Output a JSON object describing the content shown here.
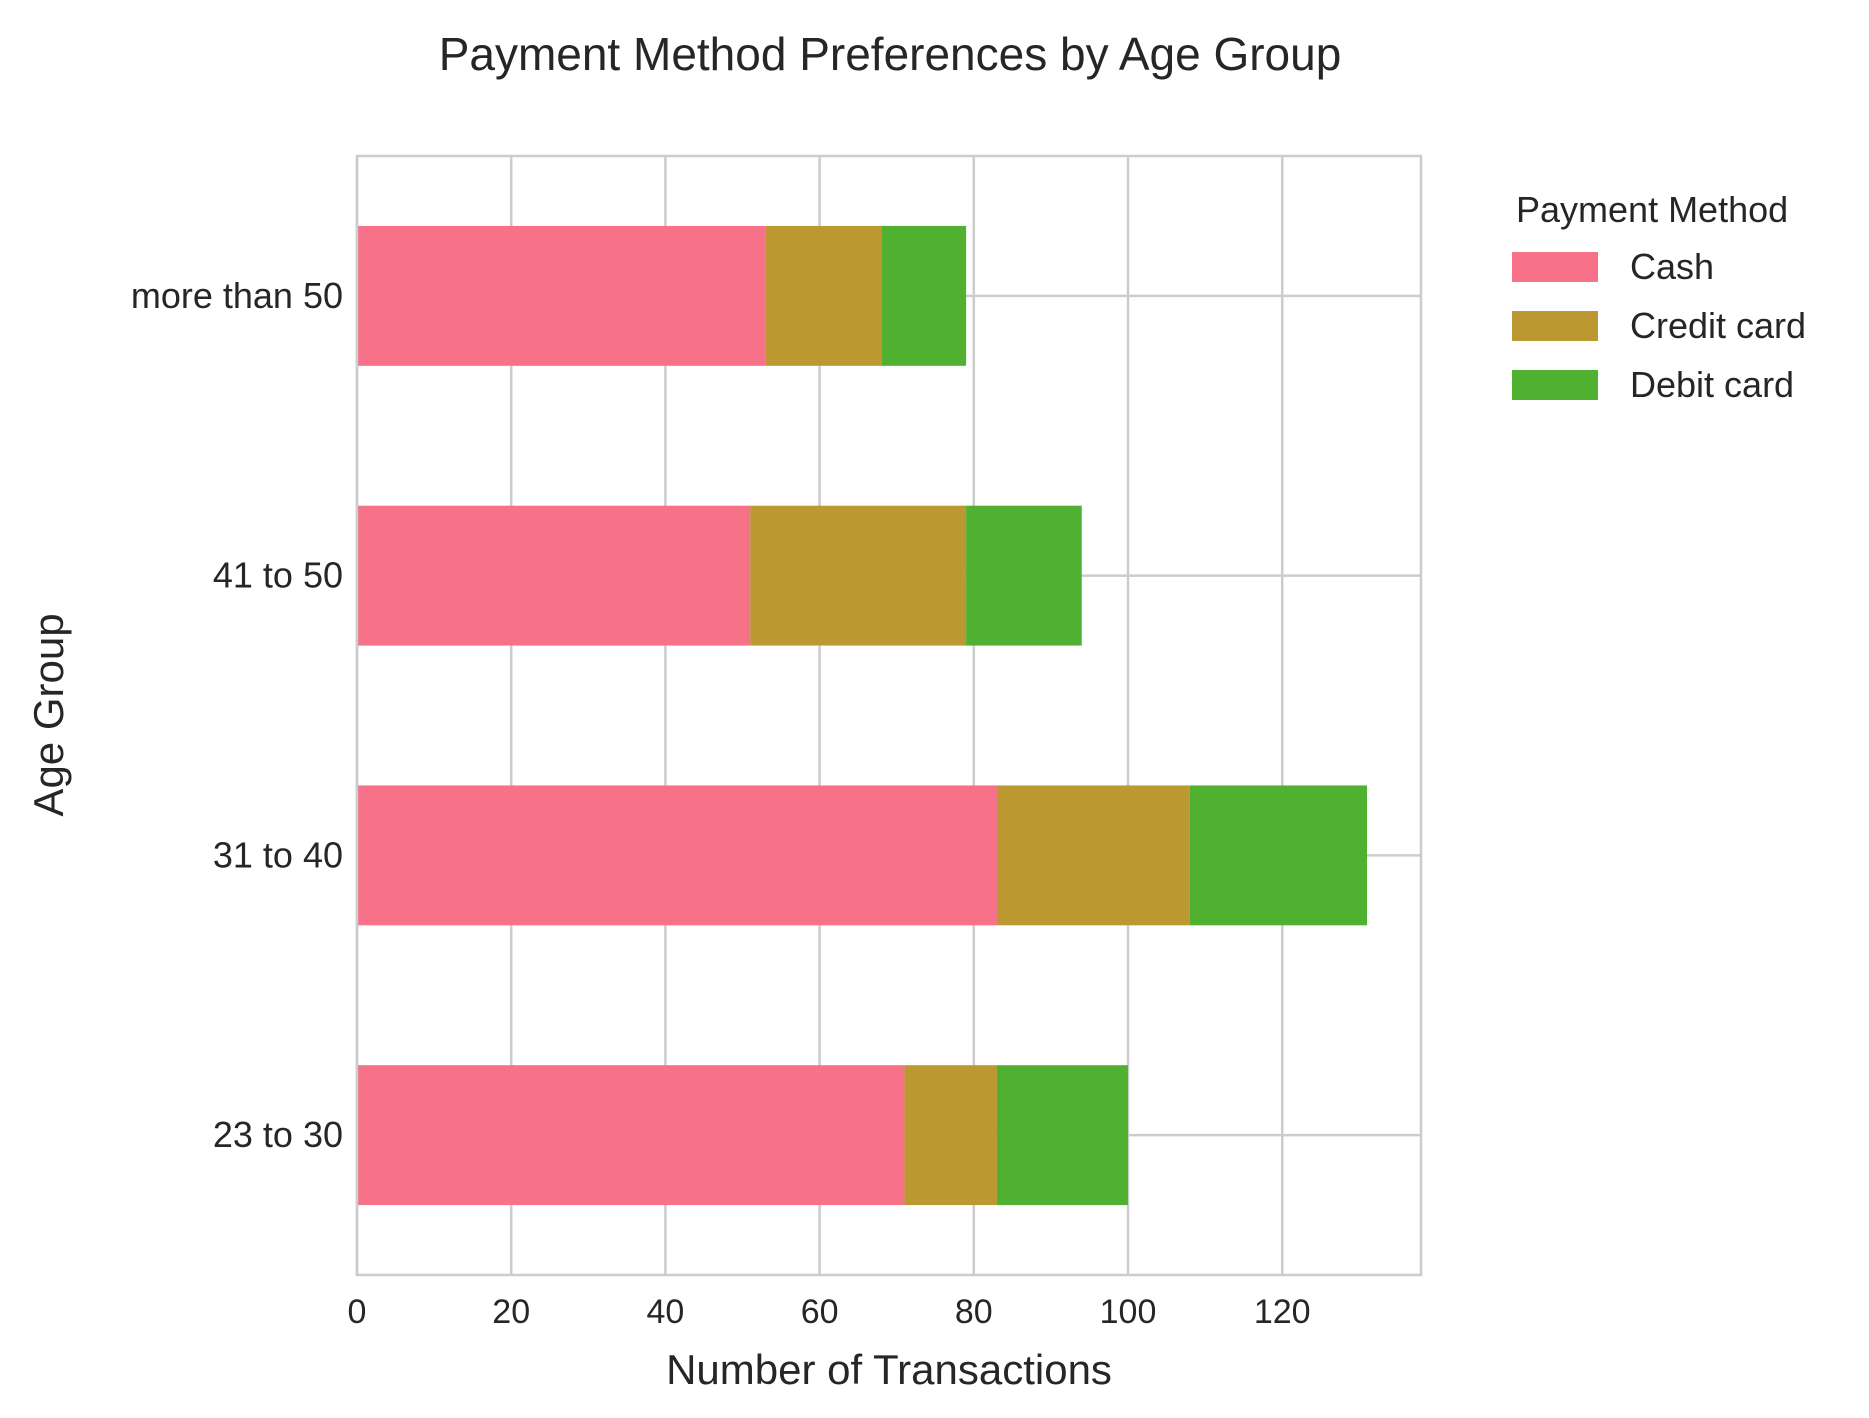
{
  "chart_data": {
    "type": "bar",
    "orientation": "horizontal",
    "stacked": true,
    "title": "Payment Method Preferences by Age Group",
    "xlabel": "Number of Transactions",
    "ylabel": "Age Group",
    "categories": [
      "23 to 30",
      "31 to 40",
      "41 to 50",
      "more than 50"
    ],
    "series": [
      {
        "name": "Cash",
        "color": "#f77189",
        "values": [
          71,
          83,
          51,
          53
        ]
      },
      {
        "name": "Credit card",
        "color": "#bb9832",
        "values": [
          12,
          25,
          28,
          15
        ]
      },
      {
        "name": "Debit card",
        "color": "#50b131",
        "values": [
          17,
          23,
          15,
          11
        ]
      }
    ],
    "xlim": [
      0,
      138
    ],
    "xticks": [
      0,
      20,
      40,
      60,
      80,
      100,
      120
    ],
    "grid": true,
    "legend": {
      "title": "Payment Method",
      "position": "outside top-right"
    }
  }
}
